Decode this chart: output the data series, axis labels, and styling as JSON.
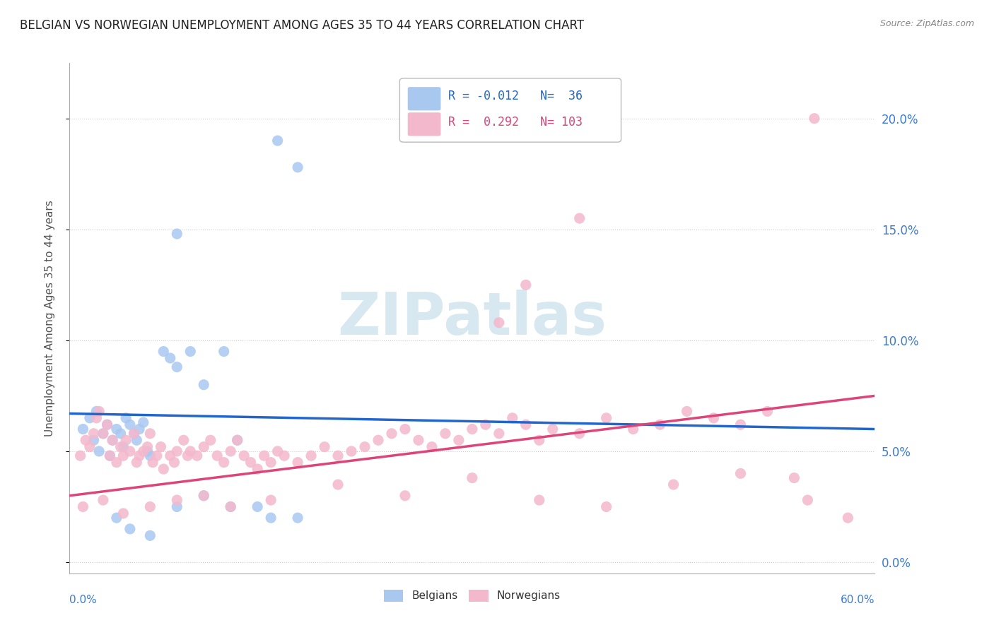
{
  "title": "BELGIAN VS NORWEGIAN UNEMPLOYMENT AMONG AGES 35 TO 44 YEARS CORRELATION CHART",
  "source": "Source: ZipAtlas.com",
  "ylabel": "Unemployment Among Ages 35 to 44 years",
  "xlim": [
    0.0,
    0.6
  ],
  "ylim": [
    -0.005,
    0.225
  ],
  "yticks": [
    0.0,
    0.05,
    0.1,
    0.15,
    0.2
  ],
  "ytick_labels": [
    "0.0%",
    "5.0%",
    "10.0%",
    "15.0%",
    "20.0%"
  ],
  "legend_r_belgian": "-0.012",
  "legend_n_belgian": "36",
  "legend_r_norwegian": "0.292",
  "legend_n_norwegian": "103",
  "belgian_color": "#a8c8f0",
  "norwegian_color": "#f4b8cc",
  "belgian_line_color": "#2266cc",
  "norwegian_line_color": "#dd4477",
  "watermark_color": "#d8e8f0",
  "background_color": "#ffffff",
  "belgian_line_start_y": 0.067,
  "belgian_line_end_y": 0.06,
  "norwegian_line_start_y": 0.03,
  "norwegian_line_end_y": 0.075
}
